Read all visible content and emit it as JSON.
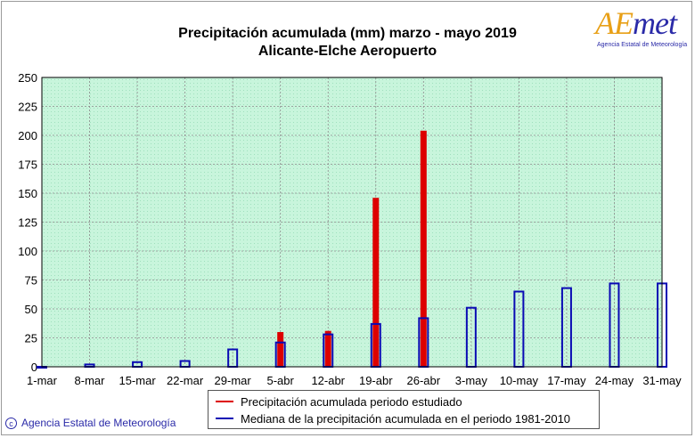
{
  "header": {
    "title_line1": "Precipitación acumulada (mm) marzo - mayo 2019",
    "title_line2": "Alicante-Elche Aeropuerto"
  },
  "logo": {
    "text_ae": "AE",
    "text_met": "met",
    "subtitle": "Agencia Estatal de Meteorología"
  },
  "colors": {
    "plot_background": "#c8f5dc",
    "observed": "#dd0000",
    "median": "#0a0ab4",
    "grid": "#8a8a8a"
  },
  "chart_data": {
    "type": "bar",
    "categories": [
      "1-mar",
      "8-mar",
      "15-mar",
      "22-mar",
      "29-mar",
      "5-abr",
      "12-abr",
      "19-abr",
      "26-abr",
      "3-may",
      "10-may",
      "17-may",
      "24-may",
      "31-may"
    ],
    "ylim": [
      0,
      250
    ],
    "yticks": [
      0,
      25,
      50,
      75,
      100,
      125,
      150,
      175,
      200,
      225,
      250
    ],
    "grid": true,
    "legend_position": "bottom",
    "series": [
      {
        "name": "Precipitación acumulada periodo estudiado",
        "style": "filled",
        "values": [
          0,
          0,
          0,
          0,
          0,
          30,
          31,
          146,
          204,
          null,
          null,
          null,
          null,
          null
        ]
      },
      {
        "name": "Mediana de la precipitación acumulada en el periodo 1981-2010",
        "style": "outline",
        "values": [
          0,
          2,
          4,
          5,
          15,
          21,
          28,
          37,
          42,
          51,
          65,
          68,
          72,
          72
        ]
      }
    ]
  },
  "legend": {
    "observed_label": "Precipitación acumulada periodo estudiado",
    "median_label": "Mediana de la precipitación acumulada en el periodo 1981-2010"
  },
  "footer": {
    "copyright_symbol": "c",
    "text": "Agencia Estatal de Meteorología"
  }
}
